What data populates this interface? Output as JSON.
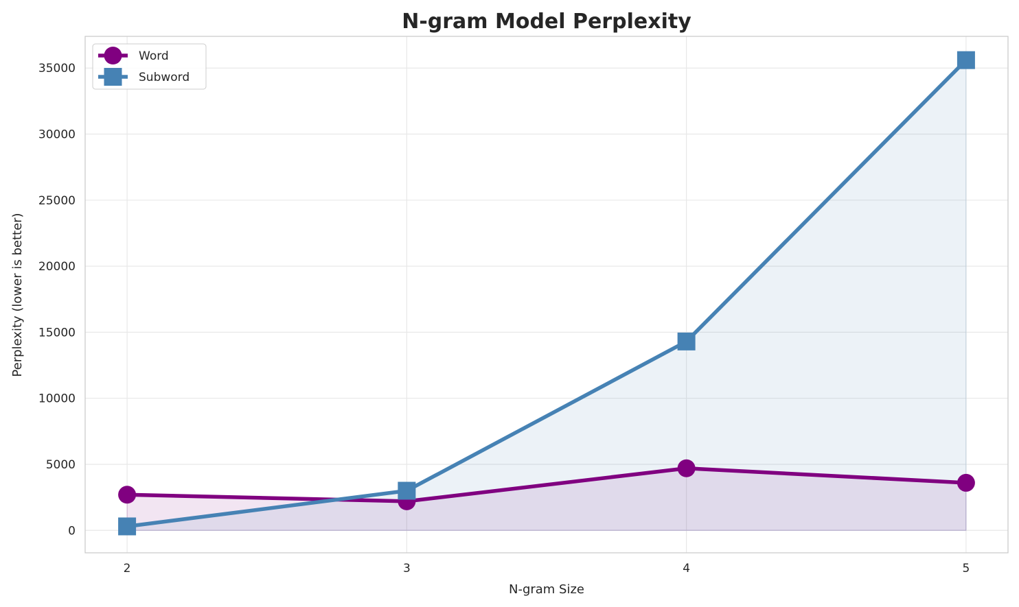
{
  "chart_data": {
    "type": "line",
    "title": "N-gram Model Perplexity",
    "xlabel": "N-gram Size",
    "ylabel": "Perplexity (lower is better)",
    "x": [
      2,
      3,
      4,
      5
    ],
    "xticks": [
      "2",
      "3",
      "4",
      "5"
    ],
    "yticks": [
      "0",
      "5000",
      "10000",
      "15000",
      "20000",
      "25000",
      "30000",
      "35000"
    ],
    "xlim": [
      1.85,
      5.15
    ],
    "ylim": [
      -1700,
      37400
    ],
    "grid": true,
    "legend_position": "top-left",
    "series": [
      {
        "name": "Word",
        "values": [
          2700,
          2200,
          4700,
          3600
        ],
        "color": "#800080",
        "marker": "circle",
        "fill": "#e9d8ec"
      },
      {
        "name": "Subword",
        "values": [
          300,
          3000,
          14300,
          35600
        ],
        "color": "#4682b4",
        "marker": "square",
        "fill": "#dde4f3"
      }
    ]
  }
}
